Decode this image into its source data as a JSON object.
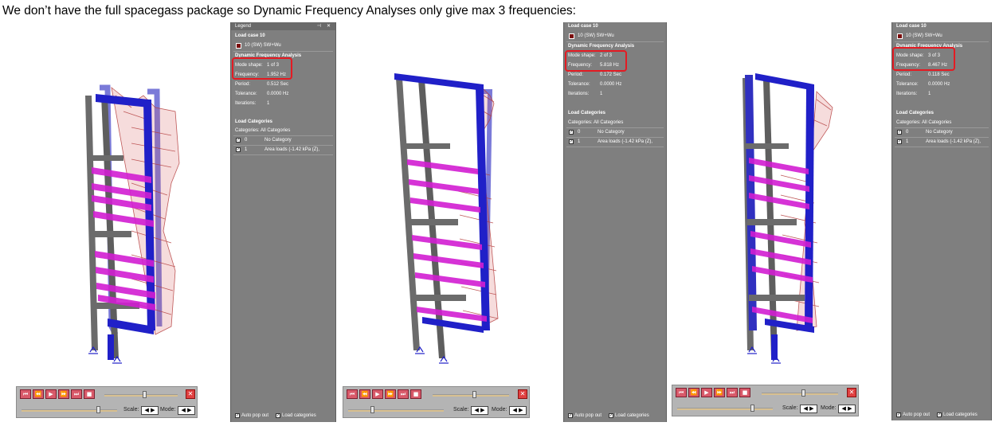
{
  "heading": "We don’t have the full spacegass package so Dynamic Frequency Analyses only give max 3 frequencies:",
  "colors": {
    "frame": "#6b6b6b",
    "mode_member": "#2020c8",
    "slab": "#d21ed2",
    "diagram": "#b43c3c",
    "panel_bg": "#7f7f7f",
    "highlight": "#e41b23"
  },
  "anim_controls": {
    "buttons": [
      "⏮",
      "⏪",
      "▶",
      "⏩",
      "⏭",
      "■"
    ],
    "close_icon": "✕",
    "scale_label": "Scale:",
    "mode_label": "Mode:",
    "spin_glyph": "◀ ▶"
  },
  "panels": [
    {
      "title": "Legend",
      "load_case_heading": "Load case 10",
      "load_case_item": "10 (SW)   SW+Wu",
      "analysis_heading": "Dynamic Frequency Analysis",
      "fields": [
        {
          "label": "Mode shape:",
          "value": "1 of 3"
        },
        {
          "label": "Frequency:",
          "value": "1.952 Hz"
        },
        {
          "label": "Period:",
          "value": "0.512 Sec"
        },
        {
          "label": "Tolerance:",
          "value": "0.0000 Hz"
        },
        {
          "label": "Iterations:",
          "value": "1"
        }
      ],
      "categories_heading": "Load Categories",
      "categories_label": "Categories: All Categories",
      "categories": [
        {
          "id": "0",
          "name": "No Category"
        },
        {
          "id": "1",
          "name": "Area loads (-1.42 kPa (Z),"
        }
      ],
      "footer": [
        "Auto pop out",
        "Load categories"
      ]
    },
    {
      "load_case_heading": "Load case 10",
      "load_case_item": "10 (SW)   SW+Wu",
      "analysis_heading": "Dynamic Frequency Analysis",
      "fields": [
        {
          "label": "Mode shape:",
          "value": "2 of 3"
        },
        {
          "label": "Frequency:",
          "value": "5.818 Hz"
        },
        {
          "label": "Period:",
          "value": "0.172 Sec"
        },
        {
          "label": "Tolerance:",
          "value": "0.0000 Hz"
        },
        {
          "label": "Iterations:",
          "value": "1"
        }
      ],
      "categories_heading": "Load Categories",
      "categories_label": "Categories: All Categories",
      "categories": [
        {
          "id": "0",
          "name": "No Category"
        },
        {
          "id": "1",
          "name": "Area loads (-1.42 kPa (Z),"
        }
      ],
      "footer": [
        "Auto pop out",
        "Load categories"
      ]
    },
    {
      "load_case_heading": "Load case 10",
      "load_case_item": "10 (SW)   SW+Wu",
      "analysis_heading": "Dynamic Frequency Analysis",
      "fields": [
        {
          "label": "Mode shape:",
          "value": "3 of 3"
        },
        {
          "label": "Frequency:",
          "value": "8.467 Hz"
        },
        {
          "label": "Period:",
          "value": "0.118 Sec"
        },
        {
          "label": "Tolerance:",
          "value": "0.0000 Hz"
        },
        {
          "label": "Iterations:",
          "value": "1"
        }
      ],
      "categories_heading": "Load Categories",
      "categories_label": "Categories: All Categories",
      "categories": [
        {
          "id": "0",
          "name": "No Category"
        },
        {
          "id": "1",
          "name": "Area loads (-1.42 kPa (Z),"
        }
      ],
      "footer": [
        "Auto pop out",
        "Load categories"
      ]
    }
  ],
  "icons": {
    "checkbox": "✓",
    "pin": "⊣",
    "close": "✕",
    "legend": "legend-icon"
  }
}
